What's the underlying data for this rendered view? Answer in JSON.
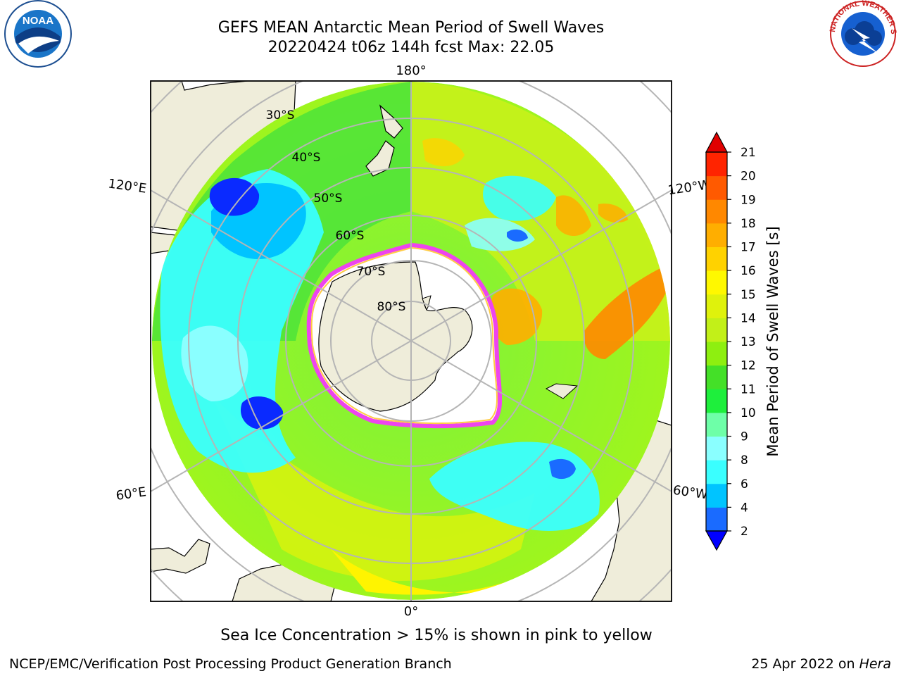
{
  "title": {
    "line1": "GEFS MEAN Antarctic Mean Period of Swell Waves",
    "line2": "20220424 t06z 144h fcst   Max: 22.05"
  },
  "logos": {
    "noaa_text": "NOAA",
    "nws_text": "NATIONAL WEATHER SERVICE"
  },
  "map": {
    "lon_labels": [
      "180°",
      "120°E",
      "120°W",
      "60°E",
      "60°W",
      "0°"
    ],
    "lat_labels": [
      "30°S",
      "40°S",
      "50°S",
      "60°S",
      "70°S",
      "80°S"
    ],
    "colors": {
      "land": "#efedda",
      "ice_fill": "#ffffff",
      "ice_edge": "#ee44ee",
      "grid": "#b5b5b5"
    }
  },
  "colorbar": {
    "label": "Mean Period of Swell Waves [s]",
    "ticks": [
      "2",
      "4",
      "6",
      "8",
      "9",
      "10",
      "11",
      "12",
      "13",
      "14",
      "15",
      "16",
      "17",
      "18",
      "19",
      "20",
      "21"
    ],
    "colors": [
      "#1a6bff",
      "#00c4ff",
      "#3affff",
      "#8affff",
      "#6effa8",
      "#1eef3c",
      "#44e028",
      "#8eef10",
      "#c2f018",
      "#dff20c",
      "#fff800",
      "#ffd200",
      "#ffae00",
      "#ff8800",
      "#ff5a00",
      "#ff2400"
    ],
    "under_color": "#0000ff",
    "over_color": "#e00000"
  },
  "footer": {
    "note": "Sea Ice Concentration > 15% is shown in pink to yellow",
    "left": "NCEP/EMC/Verification Post Processing Product Generation Branch",
    "right_date": "25 Apr 2022 on",
    "right_machine": "Hera"
  }
}
